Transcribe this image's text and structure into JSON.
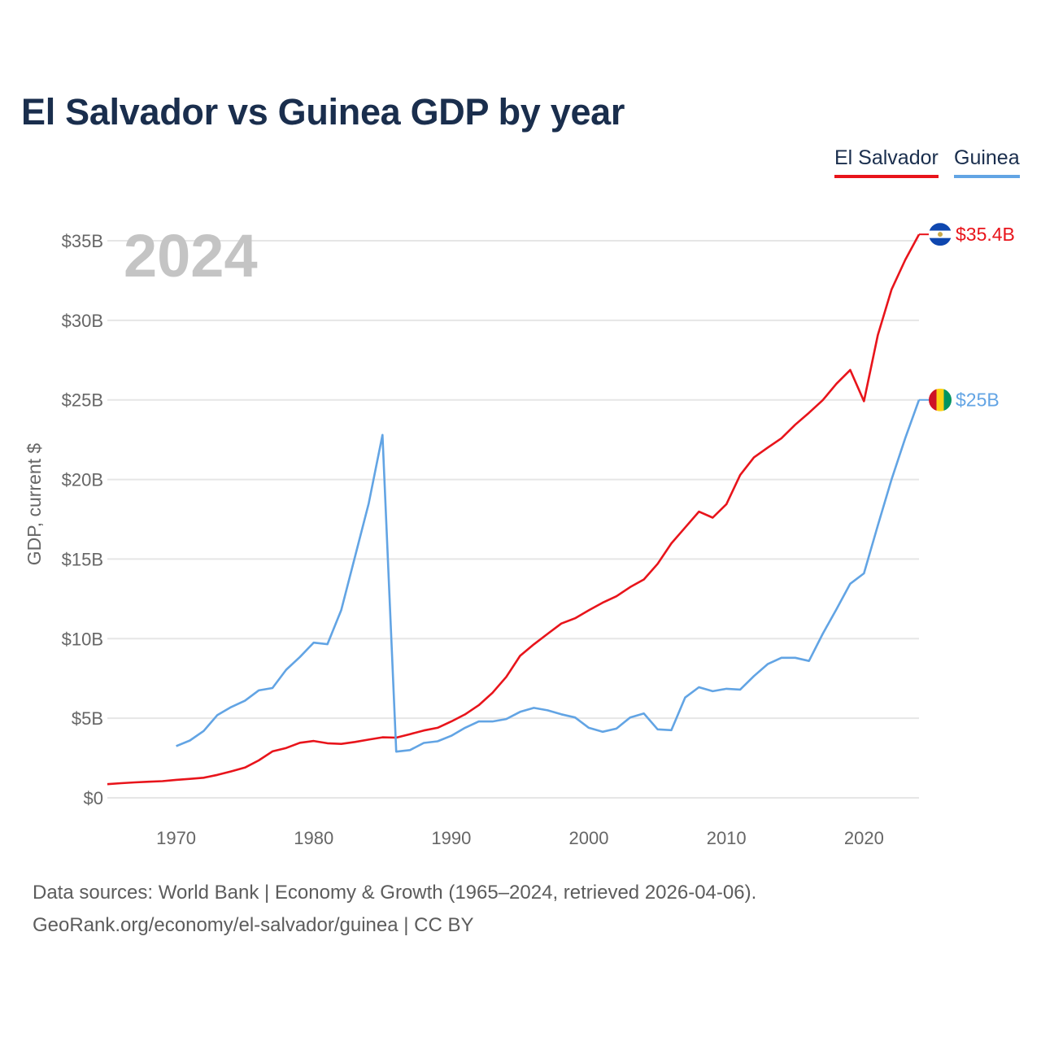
{
  "title": "El Salvador vs Guinea GDP by year",
  "legend": [
    {
      "name": "El Salvador",
      "color": "#e8141b"
    },
    {
      "name": "Guinea",
      "color": "#62a4e4"
    }
  ],
  "year_watermark": "2024",
  "footer": {
    "source": "Data sources: World Bank | Economy & Growth (1965–2024, retrieved 2026-04-06).",
    "credit": "GeoRank.org/economy/el-salvador/guinea | CC BY"
  },
  "chart_data": {
    "type": "line",
    "title": "El Salvador vs Guinea GDP by year",
    "xlabel": "",
    "ylabel": "GDP, current $",
    "xlim": [
      1965,
      2024
    ],
    "ylim": [
      0,
      35
    ],
    "x_ticks": [
      1970,
      1980,
      1990,
      2000,
      2010,
      2020
    ],
    "y_ticks": [
      0,
      5,
      10,
      15,
      20,
      25,
      30,
      35
    ],
    "y_tick_labels": [
      "$0",
      "$5B",
      "$10B",
      "$15B",
      "$20B",
      "$25B",
      "$30B",
      "$35B"
    ],
    "grid": true,
    "units": "billions USD",
    "series": [
      {
        "name": "El Salvador",
        "color": "#e8141b",
        "end_label": "$35.4B",
        "flag": [
          "#0f47af",
          "#ffffff",
          "#0f47af"
        ],
        "x": [
          1965,
          1966,
          1967,
          1968,
          1969,
          1970,
          1971,
          1972,
          1973,
          1974,
          1975,
          1976,
          1977,
          1978,
          1979,
          1980,
          1981,
          1982,
          1983,
          1984,
          1985,
          1986,
          1987,
          1988,
          1989,
          1990,
          1991,
          1992,
          1993,
          1994,
          1995,
          1996,
          1997,
          1998,
          1999,
          2000,
          2001,
          2002,
          2003,
          2004,
          2005,
          2006,
          2007,
          2008,
          2009,
          2010,
          2011,
          2012,
          2013,
          2014,
          2015,
          2016,
          2017,
          2018,
          2019,
          2020,
          2021,
          2022,
          2023,
          2024
        ],
        "values": [
          0.86,
          0.92,
          0.97,
          1.01,
          1.05,
          1.13,
          1.19,
          1.26,
          1.44,
          1.66,
          1.9,
          2.35,
          2.92,
          3.13,
          3.46,
          3.57,
          3.43,
          3.39,
          3.51,
          3.66,
          3.8,
          3.78,
          4.0,
          4.23,
          4.4,
          4.8,
          5.24,
          5.82,
          6.6,
          7.6,
          8.92,
          9.64,
          10.3,
          10.95,
          11.28,
          11.78,
          12.26,
          12.66,
          13.24,
          13.72,
          14.7,
          15.99,
          16.98,
          17.98,
          17.6,
          18.45,
          20.28,
          21.39,
          22.0,
          22.59,
          23.44,
          24.19,
          24.98,
          26.02,
          26.88,
          24.92,
          29.06,
          31.93,
          33.8,
          35.4
        ]
      },
      {
        "name": "Guinea",
        "color": "#62a4e4",
        "end_label": "$25B",
        "flag": [
          "#ce1126",
          "#fcd116",
          "#009460"
        ],
        "x": [
          1970,
          1971,
          1972,
          1973,
          1974,
          1975,
          1976,
          1977,
          1978,
          1979,
          1980,
          1981,
          1982,
          1983,
          1984,
          1985,
          1986,
          1987,
          1988,
          1989,
          1990,
          1991,
          1992,
          1993,
          1994,
          1995,
          1996,
          1997,
          1998,
          1999,
          2000,
          2001,
          2002,
          2003,
          2004,
          2005,
          2006,
          2007,
          2008,
          2009,
          2010,
          2011,
          2012,
          2013,
          2014,
          2015,
          2016,
          2017,
          2018,
          2019,
          2020,
          2021,
          2022,
          2023,
          2024
        ],
        "values": [
          3.25,
          3.6,
          4.2,
          5.2,
          5.7,
          6.1,
          6.75,
          6.9,
          8.05,
          8.85,
          9.75,
          9.65,
          11.8,
          15.15,
          18.5,
          22.8,
          2.9,
          3.0,
          3.45,
          3.55,
          3.9,
          4.4,
          4.8,
          4.8,
          4.95,
          5.4,
          5.65,
          5.5,
          5.25,
          5.05,
          4.4,
          4.15,
          4.35,
          5.05,
          5.3,
          4.3,
          4.25,
          6.3,
          6.95,
          6.7,
          6.85,
          6.8,
          7.65,
          8.4,
          8.8,
          8.8,
          8.6,
          10.3,
          11.85,
          13.45,
          14.1,
          17.1,
          20.0,
          22.6,
          25.0
        ]
      }
    ]
  }
}
